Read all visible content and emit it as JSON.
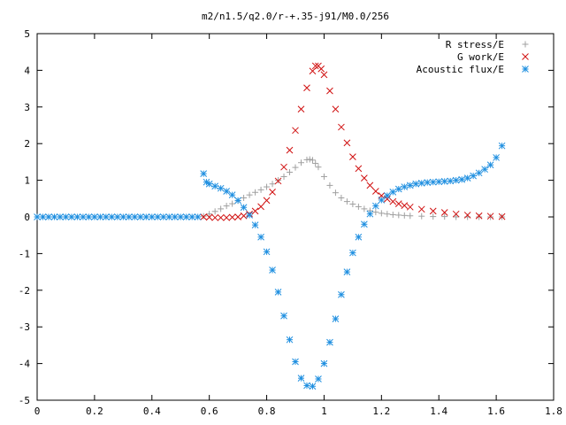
{
  "chart_data": {
    "type": "scatter",
    "title": "m2/n1.5/q2.0/r-+.35-j91/M0.0/256",
    "xlabel": "",
    "ylabel": "",
    "xlim": [
      0,
      1.8
    ],
    "ylim": [
      -5,
      5
    ],
    "x_ticks": [
      "0",
      "0.2",
      "0.4",
      "0.6",
      "0.8",
      "1",
      "1.2",
      "1.4",
      "1.6",
      "1.8"
    ],
    "y_ticks": [
      "5",
      "4",
      "3",
      "2",
      "1",
      "0",
      "-1",
      "-2",
      "-3",
      "-4",
      "-5"
    ],
    "grid": false,
    "legend_position": "top-right",
    "series": [
      {
        "name": "R stress/E",
        "marker": "plus",
        "color": "#a0a0a0",
        "points": [
          [
            0.58,
            0.02
          ],
          [
            0.6,
            0.08
          ],
          [
            0.62,
            0.15
          ],
          [
            0.64,
            0.22
          ],
          [
            0.66,
            0.3
          ],
          [
            0.68,
            0.36
          ],
          [
            0.7,
            0.44
          ],
          [
            0.72,
            0.52
          ],
          [
            0.74,
            0.6
          ],
          [
            0.76,
            0.67
          ],
          [
            0.78,
            0.74
          ],
          [
            0.8,
            0.82
          ],
          [
            0.82,
            0.9
          ],
          [
            0.84,
            1.0
          ],
          [
            0.86,
            1.1
          ],
          [
            0.88,
            1.22
          ],
          [
            0.9,
            1.35
          ],
          [
            0.92,
            1.48
          ],
          [
            0.94,
            1.56
          ],
          [
            0.95,
            1.57
          ],
          [
            0.96,
            1.55
          ],
          [
            0.97,
            1.46
          ],
          [
            0.98,
            1.36
          ],
          [
            1.0,
            1.1
          ],
          [
            1.02,
            0.86
          ],
          [
            1.04,
            0.66
          ],
          [
            1.06,
            0.52
          ],
          [
            1.08,
            0.42
          ],
          [
            1.1,
            0.35
          ],
          [
            1.12,
            0.28
          ],
          [
            1.14,
            0.22
          ],
          [
            1.16,
            0.17
          ],
          [
            1.18,
            0.13
          ],
          [
            1.2,
            0.1
          ],
          [
            1.22,
            0.08
          ],
          [
            1.24,
            0.06
          ],
          [
            1.26,
            0.05
          ],
          [
            1.28,
            0.04
          ],
          [
            1.3,
            0.03
          ],
          [
            1.34,
            0.02
          ],
          [
            1.38,
            0.01
          ],
          [
            1.42,
            0.01
          ],
          [
            1.46,
            0.0
          ],
          [
            1.5,
            0.0
          ],
          [
            1.54,
            0.0
          ],
          [
            1.58,
            0.0
          ],
          [
            1.62,
            0.0
          ]
        ]
      },
      {
        "name": "G work/E",
        "marker": "cross",
        "color": "#d01010",
        "points": [
          [
            0.58,
            0.0
          ],
          [
            0.6,
            -0.01
          ],
          [
            0.62,
            -0.02
          ],
          [
            0.64,
            -0.02
          ],
          [
            0.66,
            -0.02
          ],
          [
            0.68,
            -0.01
          ],
          [
            0.7,
            0.0
          ],
          [
            0.72,
            0.03
          ],
          [
            0.74,
            0.08
          ],
          [
            0.76,
            0.16
          ],
          [
            0.78,
            0.28
          ],
          [
            0.8,
            0.45
          ],
          [
            0.82,
            0.68
          ],
          [
            0.84,
            0.98
          ],
          [
            0.86,
            1.36
          ],
          [
            0.88,
            1.82
          ],
          [
            0.9,
            2.36
          ],
          [
            0.92,
            2.94
          ],
          [
            0.94,
            3.52
          ],
          [
            0.96,
            3.98
          ],
          [
            0.97,
            4.12
          ],
          [
            0.98,
            4.12
          ],
          [
            0.99,
            4.04
          ],
          [
            1.0,
            3.88
          ],
          [
            1.02,
            3.44
          ],
          [
            1.04,
            2.94
          ],
          [
            1.06,
            2.45
          ],
          [
            1.08,
            2.02
          ],
          [
            1.1,
            1.64
          ],
          [
            1.12,
            1.32
          ],
          [
            1.14,
            1.06
          ],
          [
            1.16,
            0.86
          ],
          [
            1.18,
            0.7
          ],
          [
            1.2,
            0.58
          ],
          [
            1.22,
            0.49
          ],
          [
            1.24,
            0.42
          ],
          [
            1.26,
            0.36
          ],
          [
            1.28,
            0.31
          ],
          [
            1.3,
            0.27
          ],
          [
            1.34,
            0.21
          ],
          [
            1.38,
            0.16
          ],
          [
            1.42,
            0.12
          ],
          [
            1.46,
            0.08
          ],
          [
            1.5,
            0.05
          ],
          [
            1.54,
            0.03
          ],
          [
            1.58,
            0.02
          ],
          [
            1.62,
            0.01
          ]
        ]
      },
      {
        "name": "Acoustic flux/E",
        "marker": "star",
        "color": "#1f8fe0",
        "points": [
          [
            0.0,
            0.0
          ],
          [
            0.02,
            0.0
          ],
          [
            0.04,
            0.0
          ],
          [
            0.06,
            0.0
          ],
          [
            0.08,
            0.0
          ],
          [
            0.1,
            0.0
          ],
          [
            0.12,
            0.0
          ],
          [
            0.14,
            0.0
          ],
          [
            0.16,
            0.0
          ],
          [
            0.18,
            0.0
          ],
          [
            0.2,
            0.0
          ],
          [
            0.22,
            0.0
          ],
          [
            0.24,
            0.0
          ],
          [
            0.26,
            0.0
          ],
          [
            0.28,
            0.0
          ],
          [
            0.3,
            0.0
          ],
          [
            0.32,
            0.0
          ],
          [
            0.34,
            0.0
          ],
          [
            0.36,
            0.0
          ],
          [
            0.38,
            0.0
          ],
          [
            0.4,
            0.0
          ],
          [
            0.42,
            0.0
          ],
          [
            0.44,
            0.0
          ],
          [
            0.46,
            0.0
          ],
          [
            0.48,
            0.0
          ],
          [
            0.5,
            0.0
          ],
          [
            0.52,
            0.0
          ],
          [
            0.54,
            0.0
          ],
          [
            0.56,
            0.0
          ],
          [
            0.58,
            1.18
          ],
          [
            0.59,
            0.95
          ],
          [
            0.6,
            0.9
          ],
          [
            0.62,
            0.84
          ],
          [
            0.64,
            0.78
          ],
          [
            0.66,
            0.7
          ],
          [
            0.68,
            0.6
          ],
          [
            0.7,
            0.45
          ],
          [
            0.72,
            0.26
          ],
          [
            0.74,
            0.05
          ],
          [
            0.76,
            -0.22
          ],
          [
            0.78,
            -0.55
          ],
          [
            0.8,
            -0.95
          ],
          [
            0.82,
            -1.45
          ],
          [
            0.84,
            -2.05
          ],
          [
            0.86,
            -2.7
          ],
          [
            0.88,
            -3.35
          ],
          [
            0.9,
            -3.95
          ],
          [
            0.92,
            -4.4
          ],
          [
            0.94,
            -4.6
          ],
          [
            0.96,
            -4.62
          ],
          [
            0.98,
            -4.42
          ],
          [
            1.0,
            -4.0
          ],
          [
            1.02,
            -3.42
          ],
          [
            1.04,
            -2.78
          ],
          [
            1.06,
            -2.12
          ],
          [
            1.08,
            -1.5
          ],
          [
            1.1,
            -0.98
          ],
          [
            1.12,
            -0.55
          ],
          [
            1.14,
            -0.2
          ],
          [
            1.16,
            0.08
          ],
          [
            1.18,
            0.3
          ],
          [
            1.2,
            0.46
          ],
          [
            1.22,
            0.58
          ],
          [
            1.24,
            0.68
          ],
          [
            1.26,
            0.76
          ],
          [
            1.28,
            0.82
          ],
          [
            1.3,
            0.86
          ],
          [
            1.32,
            0.9
          ],
          [
            1.34,
            0.92
          ],
          [
            1.36,
            0.94
          ],
          [
            1.38,
            0.95
          ],
          [
            1.4,
            0.96
          ],
          [
            1.42,
            0.97
          ],
          [
            1.44,
            0.98
          ],
          [
            1.46,
            1.0
          ],
          [
            1.48,
            1.02
          ],
          [
            1.5,
            1.06
          ],
          [
            1.52,
            1.12
          ],
          [
            1.54,
            1.2
          ],
          [
            1.56,
            1.3
          ],
          [
            1.58,
            1.42
          ],
          [
            1.6,
            1.62
          ],
          [
            1.62,
            1.94
          ]
        ]
      }
    ]
  }
}
